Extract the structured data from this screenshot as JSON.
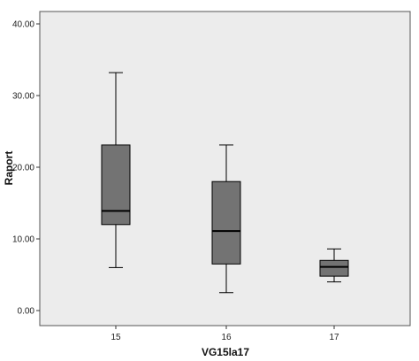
{
  "chart_data": {
    "type": "box",
    "xlabel": "VG15la17",
    "ylabel": "Raport",
    "ylim": [
      0,
      41
    ],
    "yticks": [
      "0.00",
      "10.00",
      "20.00",
      "30.00",
      "40.00"
    ],
    "ytick_values": [
      0,
      10,
      20,
      30,
      40
    ],
    "categories": [
      "15",
      "16",
      "17"
    ],
    "boxes": [
      {
        "category": "15",
        "min": 6.0,
        "q1": 12.0,
        "median": 13.9,
        "q3": 23.1,
        "max": 33.2
      },
      {
        "category": "16",
        "min": 2.5,
        "q1": 6.5,
        "median": 11.1,
        "q3": 18.0,
        "max": 23.1
      },
      {
        "category": "17",
        "min": 4.0,
        "q1": 4.8,
        "median": 6.1,
        "q3": 7.0,
        "max": 8.6
      }
    ],
    "grid": false,
    "colors": {
      "box_fill": "#737373",
      "plot_background": "#ececec",
      "line": "#000000"
    }
  }
}
